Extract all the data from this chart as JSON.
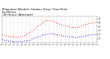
{
  "title": "Milwaukee Weather Outdoor Temp / Dew Point\nby Minute\n(24 Hours) (Alternate)",
  "title_fontsize": 3.0,
  "bg_color": "#ffffff",
  "grid_color": "#888888",
  "red_x": [
    0,
    30,
    60,
    90,
    120,
    150,
    180,
    210,
    240,
    270,
    300,
    330,
    360,
    390,
    420,
    450,
    480,
    510,
    540,
    570,
    600,
    630,
    660,
    690,
    720,
    750,
    780,
    810,
    840,
    870,
    900,
    930,
    960,
    990,
    1020,
    1050,
    1080,
    1110,
    1140,
    1170,
    1200,
    1230,
    1260,
    1290,
    1320,
    1350,
    1380,
    1410,
    1440
  ],
  "red_y": [
    30,
    28,
    27,
    26,
    25,
    24,
    24,
    24,
    24,
    25,
    26,
    28,
    30,
    33,
    36,
    40,
    44,
    48,
    52,
    55,
    59,
    62,
    65,
    66,
    66,
    65,
    63,
    61,
    59,
    57,
    55,
    54,
    52,
    51,
    50,
    49,
    48,
    48,
    49,
    50,
    52,
    54,
    56,
    57,
    58,
    59,
    60,
    61,
    62
  ],
  "blue_x": [
    0,
    30,
    60,
    90,
    120,
    150,
    180,
    210,
    240,
    270,
    300,
    330,
    360,
    390,
    420,
    450,
    480,
    510,
    540,
    570,
    600,
    630,
    660,
    690,
    720,
    750,
    780,
    810,
    840,
    870,
    900,
    930,
    960,
    990,
    1020,
    1050,
    1080,
    1110,
    1140,
    1170,
    1200,
    1230,
    1260,
    1290,
    1320,
    1350,
    1380,
    1410,
    1440
  ],
  "blue_y": [
    18,
    17,
    16,
    15,
    14,
    13,
    13,
    12,
    12,
    12,
    13,
    14,
    15,
    16,
    17,
    19,
    21,
    23,
    25,
    27,
    29,
    30,
    31,
    32,
    33,
    33,
    32,
    31,
    30,
    29,
    28,
    27,
    26,
    26,
    25,
    24,
    24,
    23,
    23,
    24,
    25,
    26,
    27,
    28,
    29,
    30,
    30,
    31,
    31
  ],
  "ylim": [
    10,
    75
  ],
  "xlim": [
    0,
    1440
  ],
  "ytick_positions": [
    20,
    30,
    40,
    50,
    60,
    70
  ],
  "ytick_labels": [
    "20",
    "30",
    "40",
    "50",
    "60",
    "70"
  ],
  "xtick_positions": [
    0,
    60,
    120,
    180,
    240,
    300,
    360,
    420,
    480,
    540,
    600,
    660,
    720,
    780,
    840,
    900,
    960,
    1020,
    1080,
    1140,
    1200,
    1260,
    1320,
    1380,
    1440
  ],
  "xtick_labels": [
    "12:00\nAM",
    "1:00\nAM",
    "2:00\nAM",
    "3:00\nAM",
    "4:00\nAM",
    "5:00\nAM",
    "6:00\nAM",
    "7:00\nAM",
    "8:00\nAM",
    "9:00\nAM",
    "10:00\nAM",
    "11:00\nAM",
    "12:00\nPM",
    "1:00\nPM",
    "2:00\nPM",
    "3:00\nPM",
    "4:00\nPM",
    "5:00\nPM",
    "6:00\nPM",
    "7:00\nPM",
    "8:00\nPM",
    "9:00\nPM",
    "10:00\nPM",
    "11:00\nPM",
    "12:00\nAM"
  ],
  "red_color": "#ff0000",
  "blue_color": "#0000ff",
  "marker_size": 0.7,
  "grid_positions": [
    0,
    60,
    120,
    180,
    240,
    300,
    360,
    420,
    480,
    540,
    600,
    660,
    720,
    780,
    840,
    900,
    960,
    1020,
    1080,
    1140,
    1200,
    1260,
    1320,
    1380,
    1440
  ]
}
